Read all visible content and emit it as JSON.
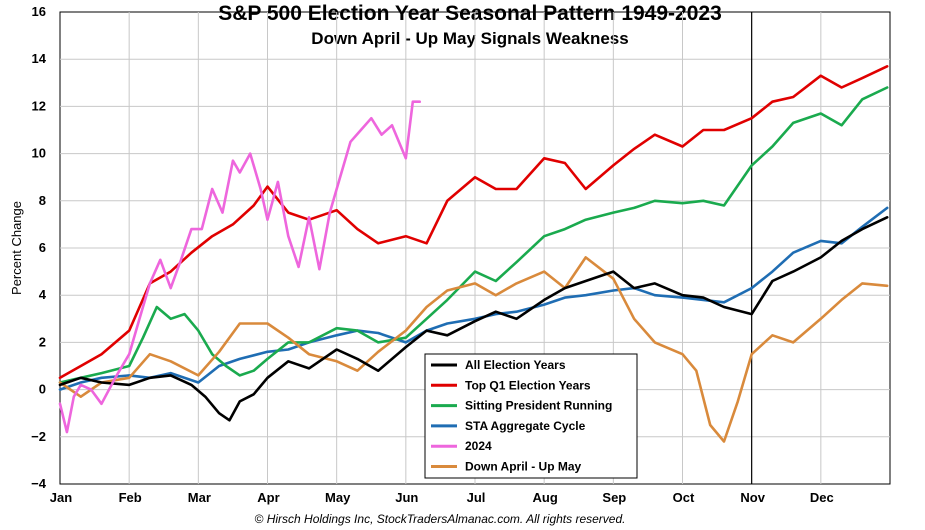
{
  "chart_data": {
    "type": "line",
    "title": "S&P 500 Election Year Seasonal Pattern 1949-2023",
    "subtitle": "Down April - Up May Signals Weakness",
    "ylabel": "Percent Change",
    "ylim": [
      -4,
      16
    ],
    "yticks": [
      "16",
      "14",
      "12",
      "10",
      "8",
      "6",
      "4",
      "2",
      "0",
      "−2",
      "−4"
    ],
    "months": [
      "Jan",
      "Feb",
      "Mar",
      "Apr",
      "May",
      "Jun",
      "Jul",
      "Aug",
      "Sep",
      "Oct",
      "Nov",
      "Dec"
    ],
    "grid": true,
    "legend_position": "bottom-center",
    "copyright": "© Hirsch Holdings Inc, StockTradersAlmanac.com. All rights reserved.",
    "series": [
      {
        "name": "All Election Years",
        "color": "#000000",
        "x": [
          0.0,
          0.3,
          0.6,
          1.0,
          1.3,
          1.6,
          1.9,
          2.1,
          2.3,
          2.45,
          2.6,
          2.8,
          3.0,
          3.3,
          3.6,
          4.0,
          4.3,
          4.6,
          5.0,
          5.3,
          5.6,
          6.0,
          6.3,
          6.6,
          7.0,
          7.3,
          7.6,
          8.0,
          8.3,
          8.6,
          9.0,
          9.3,
          9.6,
          10.0,
          10.3,
          10.6,
          11.0,
          11.3,
          11.6,
          11.96
        ],
        "y": [
          0.2,
          0.5,
          0.3,
          0.2,
          0.5,
          0.6,
          0.2,
          -0.3,
          -1.0,
          -1.3,
          -0.5,
          -0.2,
          0.5,
          1.2,
          0.9,
          1.7,
          1.3,
          0.8,
          1.8,
          2.5,
          2.3,
          2.9,
          3.3,
          3.0,
          3.8,
          4.3,
          4.6,
          5.0,
          4.3,
          4.5,
          4.0,
          3.9,
          3.5,
          3.2,
          4.6,
          5.0,
          5.6,
          6.3,
          6.8,
          7.3
        ]
      },
      {
        "name": "Top Q1 Election Years",
        "color": "#e00000",
        "x": [
          0.0,
          0.3,
          0.6,
          1.0,
          1.3,
          1.6,
          1.9,
          2.2,
          2.5,
          2.8,
          3.0,
          3.3,
          3.6,
          4.0,
          4.3,
          4.6,
          5.0,
          5.3,
          5.6,
          6.0,
          6.3,
          6.6,
          7.0,
          7.3,
          7.6,
          8.0,
          8.3,
          8.6,
          9.0,
          9.3,
          9.6,
          10.0,
          10.3,
          10.6,
          11.0,
          11.3,
          11.6,
          11.96
        ],
        "y": [
          0.5,
          1.0,
          1.5,
          2.5,
          4.5,
          5.0,
          5.8,
          6.5,
          7.0,
          7.8,
          8.6,
          7.5,
          7.2,
          7.6,
          6.8,
          6.2,
          6.5,
          6.2,
          8.0,
          9.0,
          8.5,
          8.5,
          9.8,
          9.6,
          8.5,
          9.5,
          10.2,
          10.8,
          10.3,
          11.0,
          11.0,
          11.5,
          12.2,
          12.4,
          13.3,
          12.8,
          13.2,
          13.7
        ]
      },
      {
        "name": "Sitting President Running",
        "color": "#1aaa4e",
        "x": [
          0.0,
          0.3,
          0.6,
          1.0,
          1.2,
          1.4,
          1.6,
          1.8,
          2.0,
          2.2,
          2.4,
          2.6,
          2.8,
          3.0,
          3.3,
          3.6,
          4.0,
          4.3,
          4.6,
          5.0,
          5.3,
          5.6,
          6.0,
          6.3,
          6.6,
          7.0,
          7.3,
          7.6,
          8.0,
          8.3,
          8.6,
          9.0,
          9.3,
          9.6,
          10.0,
          10.3,
          10.6,
          11.0,
          11.3,
          11.6,
          11.96
        ],
        "y": [
          0.3,
          0.5,
          0.7,
          1.0,
          2.2,
          3.5,
          3.0,
          3.2,
          2.5,
          1.5,
          1.0,
          0.6,
          0.8,
          1.3,
          2.0,
          2.0,
          2.6,
          2.5,
          2.0,
          2.2,
          3.0,
          3.8,
          5.0,
          4.6,
          5.4,
          6.5,
          6.8,
          7.2,
          7.5,
          7.7,
          8.0,
          7.9,
          8.0,
          7.8,
          9.5,
          10.3,
          11.3,
          11.7,
          11.2,
          12.3,
          12.8
        ]
      },
      {
        "name": "STA Aggregate Cycle",
        "color": "#1f6db3",
        "x": [
          0.0,
          0.3,
          0.6,
          1.0,
          1.3,
          1.6,
          2.0,
          2.3,
          2.6,
          3.0,
          3.3,
          3.6,
          4.0,
          4.3,
          4.6,
          5.0,
          5.3,
          5.6,
          6.0,
          6.3,
          6.6,
          7.0,
          7.3,
          7.6,
          8.0,
          8.3,
          8.6,
          9.0,
          9.3,
          9.6,
          10.0,
          10.3,
          10.6,
          11.0,
          11.3,
          11.6,
          11.96
        ],
        "y": [
          0.0,
          0.3,
          0.5,
          0.6,
          0.5,
          0.7,
          0.3,
          1.0,
          1.3,
          1.6,
          1.7,
          2.0,
          2.3,
          2.5,
          2.4,
          2.0,
          2.5,
          2.8,
          3.0,
          3.2,
          3.3,
          3.6,
          3.9,
          4.0,
          4.2,
          4.3,
          4.0,
          3.9,
          3.8,
          3.7,
          4.3,
          5.0,
          5.8,
          6.3,
          6.2,
          6.9,
          7.7
        ]
      },
      {
        "name": "2024",
        "color": "#ee66dd",
        "x": [
          0.0,
          0.1,
          0.2,
          0.3,
          0.45,
          0.6,
          0.8,
          1.0,
          1.15,
          1.3,
          1.45,
          1.6,
          1.75,
          1.9,
          2.05,
          2.2,
          2.35,
          2.5,
          2.6,
          2.75,
          2.9,
          3.0,
          3.15,
          3.3,
          3.45,
          3.6,
          3.75,
          3.9,
          4.05,
          4.2,
          4.35,
          4.5,
          4.65,
          4.8,
          5.0,
          5.1,
          5.2
        ],
        "y": [
          -0.6,
          -1.8,
          -0.3,
          0.2,
          0.0,
          -0.6,
          0.5,
          1.5,
          3.0,
          4.5,
          5.5,
          4.3,
          5.5,
          6.8,
          6.8,
          8.5,
          7.5,
          9.7,
          9.2,
          10.0,
          8.5,
          7.2,
          8.8,
          6.5,
          5.2,
          7.3,
          5.1,
          7.5,
          9.0,
          10.5,
          11.0,
          11.5,
          10.8,
          11.2,
          9.8,
          12.2,
          12.2
        ]
      },
      {
        "name": "Down April - Up May",
        "color": "#d98a3c",
        "x": [
          0.0,
          0.3,
          0.6,
          1.0,
          1.3,
          1.6,
          2.0,
          2.3,
          2.6,
          3.0,
          3.3,
          3.6,
          4.0,
          4.3,
          4.6,
          5.0,
          5.3,
          5.6,
          6.0,
          6.3,
          6.6,
          7.0,
          7.3,
          7.6,
          8.0,
          8.3,
          8.6,
          9.0,
          9.2,
          9.4,
          9.6,
          9.8,
          10.0,
          10.3,
          10.6,
          11.0,
          11.3,
          11.6,
          11.96
        ],
        "y": [
          0.3,
          -0.3,
          0.3,
          0.5,
          1.5,
          1.2,
          0.6,
          1.6,
          2.8,
          2.8,
          2.2,
          1.5,
          1.2,
          0.8,
          1.6,
          2.5,
          3.5,
          4.2,
          4.5,
          4.0,
          4.5,
          5.0,
          4.3,
          5.6,
          4.7,
          3.0,
          2.0,
          1.5,
          0.8,
          -1.5,
          -2.2,
          -0.5,
          1.5,
          2.3,
          2.0,
          3.0,
          3.8,
          4.5,
          4.4
        ]
      }
    ]
  }
}
